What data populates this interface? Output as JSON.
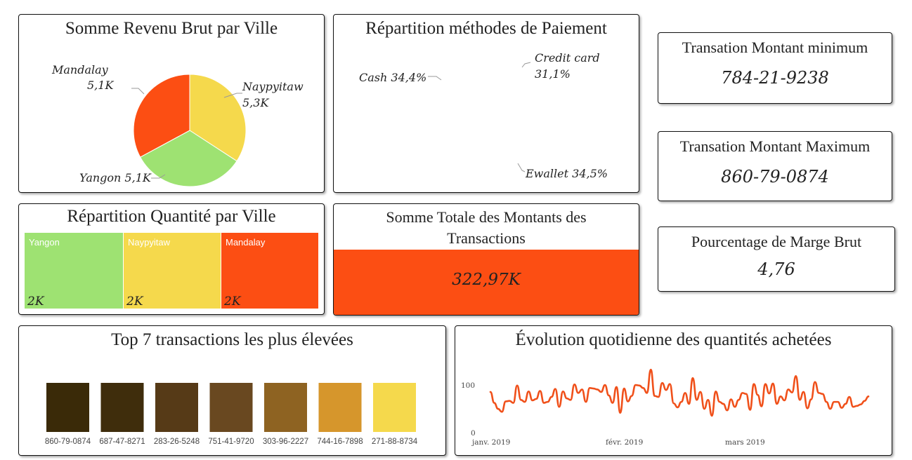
{
  "colors": {
    "red": "#fc4e13",
    "yellow": "#f5d94c",
    "green": "#9ee272",
    "line": "#f0501a"
  },
  "revenue_by_city": {
    "title": "Somme Revenu Brut par Ville",
    "labels": {
      "mandalay_name": "Mandalay",
      "mandalay_value": "5,1K",
      "naypyitaw_name": "Naypyitaw",
      "naypyitaw_value": "5,3K",
      "yangon": "Yangon 5,1K"
    }
  },
  "payment_methods": {
    "title": "Répartition méthodes de Paiement",
    "labels": {
      "credit_name": "Credit card",
      "credit_value": "31,1%",
      "cash": "Cash 34,4%",
      "ewallet": "Ewallet 34,5%"
    }
  },
  "kpi": {
    "min": {
      "title": "Transation Montant minimum",
      "value": "784-21-9238"
    },
    "max": {
      "title": "Transation Montant Maximum",
      "value": "860-79-0874"
    },
    "margin": {
      "title": "Pourcentage de Marge Brut",
      "value": "4,76"
    },
    "total": {
      "title": "Somme Totale des Montants des Transactions",
      "value": "322,97K"
    }
  },
  "quantity_by_city": {
    "title": "Répartition Quantité par Ville",
    "cells": [
      {
        "name": "Yangon",
        "value": "2K"
      },
      {
        "name": "Naypyitaw",
        "value": "2K"
      },
      {
        "name": "Mandalay",
        "value": "2K"
      }
    ]
  },
  "top_transactions": {
    "title": "Top 7 transactions les plus élevées",
    "bars": [
      {
        "label": "860-79-0874",
        "color": "#3a2a08"
      },
      {
        "label": "687-47-8271",
        "color": "#3f2d0c"
      },
      {
        "label": "283-26-5248",
        "color": "#563a17"
      },
      {
        "label": "751-41-9720",
        "color": "#694820"
      },
      {
        "label": "303-96-2227",
        "color": "#8e6322"
      },
      {
        "label": "744-16-7898",
        "color": "#d6962c"
      },
      {
        "label": "271-88-8734",
        "color": "#f5d94c"
      }
    ]
  },
  "daily_quantity": {
    "title": "Évolution quotidienne des quantités achetées",
    "ticks": {
      "y_top": "100",
      "y_bottom": "0",
      "x": [
        "janv. 2019",
        "févr. 2019",
        "mars 2019"
      ]
    }
  },
  "chart_data": [
    {
      "type": "pie",
      "title": "Somme Revenu Brut par Ville",
      "categories": [
        "Naypyitaw",
        "Yangon",
        "Mandalay"
      ],
      "values": [
        5.3,
        5.1,
        5.1
      ],
      "unit": "K",
      "colors": [
        "#f5d94c",
        "#9ee272",
        "#fc4e13"
      ]
    },
    {
      "type": "pie",
      "title": "Répartition méthodes de Paiement",
      "categories": [
        "Ewallet",
        "Cash",
        "Credit card"
      ],
      "values": [
        34.5,
        34.4,
        31.1
      ],
      "unit": "%",
      "colors": [
        "#f5d94c",
        "#9ee272",
        "#fc4e13"
      ]
    },
    {
      "type": "bar",
      "title": "Top 7 transactions les plus élevées",
      "categories": [
        "860-79-0874",
        "687-47-8271",
        "283-26-5248",
        "751-41-9720",
        "303-96-2227",
        "744-16-7898",
        "271-88-8734"
      ],
      "values": [
        1,
        1,
        1,
        1,
        1,
        1,
        1
      ]
    },
    {
      "type": "line",
      "title": "Évolution quotidienne des quantités achetées",
      "ylim": [
        0,
        130
      ],
      "x_tick_labels": [
        "janv. 2019",
        "févr. 2019",
        "mars 2019"
      ],
      "values": [
        82,
        60,
        48,
        42,
        63,
        64,
        60,
        95,
        66,
        62,
        83,
        65,
        68,
        84,
        60,
        62,
        72,
        88,
        52,
        83,
        69,
        66,
        97,
        80,
        87,
        62,
        90,
        89,
        87,
        82,
        96,
        75,
        60,
        92,
        40,
        89,
        63,
        74,
        96,
        95,
        90,
        80,
        127,
        74,
        72,
        100,
        86,
        98,
        59,
        51,
        62,
        80,
        58,
        110,
        66,
        82,
        48,
        66,
        34,
        83,
        62,
        58,
        45,
        67,
        52,
        66,
        80,
        78,
        46,
        98,
        76,
        53,
        98,
        79,
        99,
        58,
        73,
        65,
        87,
        81,
        114,
        66,
        82,
        49,
        67,
        102,
        80,
        78,
        62,
        48,
        62,
        62,
        50,
        58,
        72,
        52,
        54,
        57,
        64,
        73
      ]
    }
  ]
}
